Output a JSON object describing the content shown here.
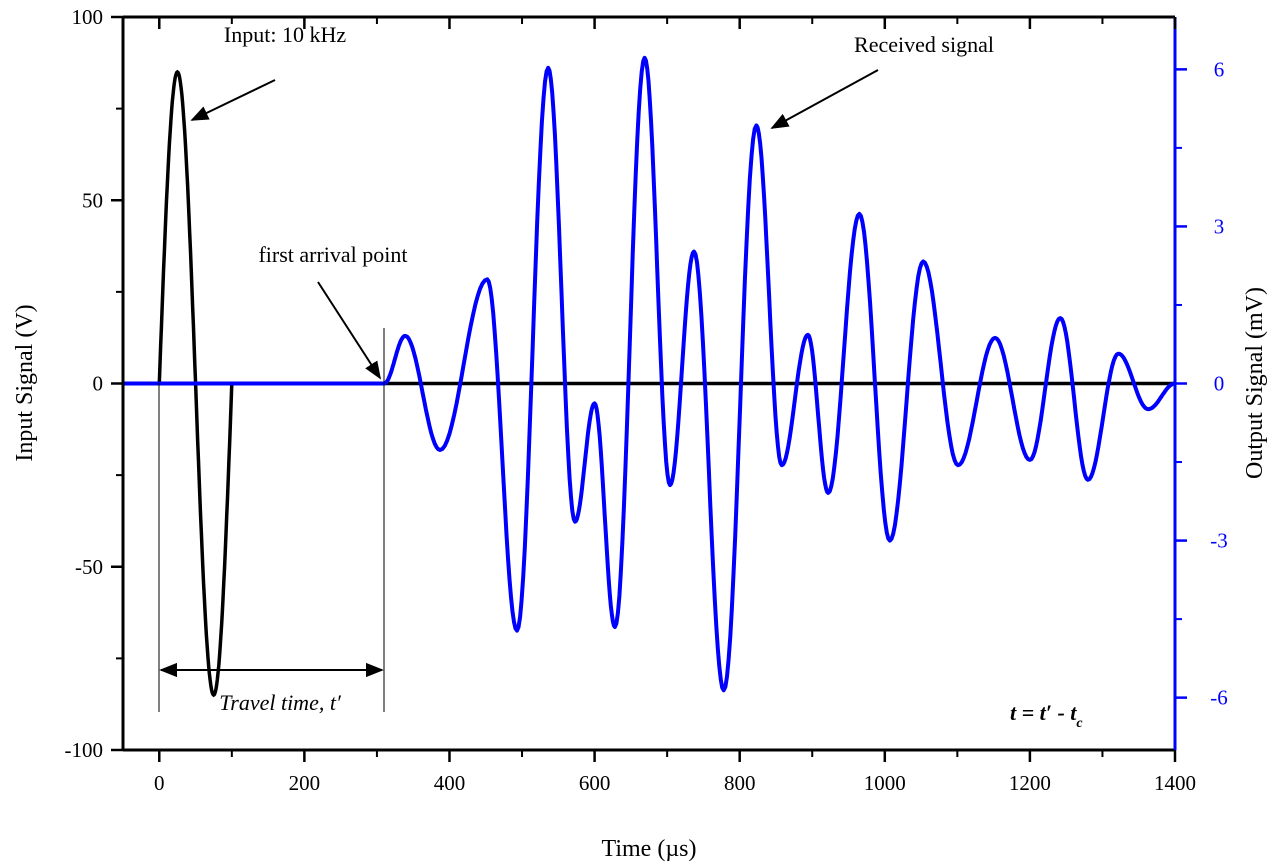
{
  "chart_data": {
    "type": "line",
    "xlabel": "Time (µs)",
    "ylabel_left": "Input Signal (V)",
    "ylabel_right": "Output Signal (mV)",
    "xlim": [
      -50,
      1400
    ],
    "ylim_left": [
      -100,
      100
    ],
    "ylim_right": [
      -7,
      7
    ],
    "x_ticks": [
      0,
      200,
      400,
      600,
      800,
      1000,
      1200,
      1400
    ],
    "y_ticks_left": [
      -100,
      -50,
      0,
      50,
      100
    ],
    "y_ticks_right": [
      -6,
      -3,
      0,
      3,
      6
    ],
    "grid": false,
    "colors": {
      "input": "#000000",
      "output": "#0000ff",
      "right_axis": "#0000ff"
    },
    "series": [
      {
        "axis": "left",
        "color": "#000000",
        "x": [
          0,
          25,
          50,
          75,
          100,
          1400
        ],
        "y": [
          0,
          85,
          0,
          -85,
          0,
          0
        ]
      },
      {
        "axis": "right",
        "color": "#0000ff",
        "x": [
          -50,
          310,
          339,
          387,
          452,
          493,
          536,
          573,
          600,
          628,
          669,
          704,
          737,
          778,
          823,
          858,
          894,
          922,
          965,
          1007,
          1053,
          1101,
          1152,
          1200,
          1242,
          1280,
          1322,
          1363,
          1400
        ],
        "y": [
          0,
          0,
          0.91,
          -1.27,
          1.99,
          -4.72,
          6.03,
          -2.64,
          -0.38,
          -4.65,
          6.22,
          -1.94,
          2.52,
          -5.86,
          4.93,
          -1.56,
          0.93,
          -2.09,
          3.24,
          -3.0,
          2.33,
          -1.56,
          0.87,
          -1.46,
          1.25,
          -1.84,
          0.57,
          -0.49,
          0
        ]
      }
    ],
    "annotations": {
      "input": "Input: 10 kHz",
      "arrival": "first arrival point",
      "received": "Received signal",
      "travel": "Travel time, t′",
      "formula_main": "t = t′ - t",
      "formula_sub": "c"
    }
  }
}
